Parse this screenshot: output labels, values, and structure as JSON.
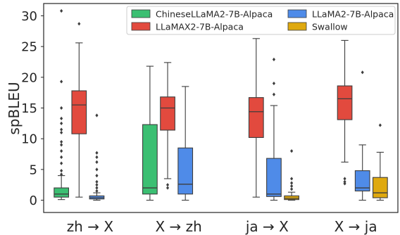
{
  "chart_data": {
    "type": "box",
    "ylabel": "spBLEU",
    "ylim": [
      -2,
      32
    ],
    "yticks": [
      0,
      5,
      10,
      15,
      20,
      25,
      30
    ],
    "categories": [
      "zh → X",
      "X → zh",
      "ja → X",
      "X → ja"
    ],
    "legend_position": "top-right",
    "series": [
      {
        "name": "ChineseLLaMA2-7B-Alpaca",
        "color": "#3bbf72",
        "boxes": [
          {
            "category": "zh → X",
            "min": 0.1,
            "q1": 0.5,
            "median": 1.0,
            "q3": 2.0,
            "max": 4.0,
            "outliers": [
              4.2,
              4.8,
              6.0,
              7.0,
              8.0,
              9.0,
              9.5,
              11.0,
              11.5,
              12.5,
              13.3,
              15.0,
              19.3,
              30.8
            ]
          },
          {
            "category": "X → zh",
            "min": 0.0,
            "q1": 1.0,
            "median": 2.0,
            "q3": 12.3,
            "max": 21.8,
            "outliers": []
          },
          null,
          null
        ]
      },
      {
        "name": "LLaMAX2-7B-Alpaca",
        "color": "#e24a3e",
        "boxes": [
          {
            "category": "zh → X",
            "min": 0.5,
            "q1": 10.8,
            "median": 15.5,
            "q3": 17.8,
            "max": 25.6,
            "outliers": [
              28.7
            ]
          },
          {
            "category": "X → zh",
            "min": 3.5,
            "q1": 11.4,
            "median": 15.0,
            "q3": 16.8,
            "max": 22.4,
            "outliers": [
              2.0,
              2.5
            ]
          },
          {
            "category": "ja → X",
            "min": 0.5,
            "q1": 10.2,
            "median": 14.4,
            "q3": 16.7,
            "max": 26.3,
            "outliers": []
          },
          {
            "category": "X → ja",
            "min": 6.2,
            "q1": 13.1,
            "median": 16.5,
            "q3": 18.6,
            "max": 26.0,
            "outliers": [
              2.7,
              3.0,
              3.5
            ]
          }
        ]
      },
      {
        "name": "LLaMA2-7B-Alpaca",
        "color": "#4f8be8",
        "boxes": [
          {
            "category": "zh → X",
            "min": 0.0,
            "q1": 0.2,
            "median": 0.4,
            "q3": 0.7,
            "max": 1.2,
            "outliers": [
              1.5,
              2.0,
              2.5,
              3.0,
              4.0,
              5.0,
              6.2,
              7.0,
              7.7,
              13.8
            ]
          },
          {
            "category": "X → zh",
            "min": 0.0,
            "q1": 1.0,
            "median": 2.6,
            "q3": 8.5,
            "max": 18.5,
            "outliers": []
          },
          {
            "category": "ja → X",
            "min": 0.0,
            "q1": 0.6,
            "median": 1.0,
            "q3": 6.8,
            "max": 15.4,
            "outliers": [
              17.2,
              19.0,
              22.9
            ]
          },
          {
            "category": "X → ja",
            "min": 0.0,
            "q1": 1.5,
            "median": 2.0,
            "q3": 4.8,
            "max": 9.0,
            "outliers": [
              20.8
            ]
          }
        ]
      },
      {
        "name": "Swallow",
        "color": "#dfa90f",
        "boxes": [
          null,
          null,
          {
            "category": "ja → X",
            "min": 0.0,
            "q1": 0.1,
            "median": 0.3,
            "q3": 0.7,
            "max": 1.3,
            "outliers": [
              1.8,
              2.3,
              2.8,
              3.5,
              8.0
            ]
          },
          {
            "category": "X → ja",
            "min": 0.0,
            "q1": 0.4,
            "median": 1.2,
            "q3": 3.7,
            "max": 7.8,
            "outliers": [
              12.2
            ]
          }
        ]
      }
    ]
  }
}
